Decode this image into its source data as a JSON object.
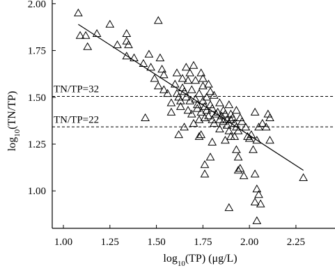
{
  "chart_data": {
    "type": "scatter",
    "xlabel": {
      "base": "log",
      "sub": "10",
      "rest": "(TP) (μg/L)"
    },
    "ylabel": {
      "base": "log",
      "sub": "10",
      "rest": "(TN/TP)"
    },
    "xlim": [
      0.94,
      2.46
    ],
    "ylim": [
      0.8,
      2.02
    ],
    "xticks": [
      1.0,
      1.25,
      1.5,
      1.75,
      2.0,
      2.25
    ],
    "xtick_labels": [
      "1.00",
      "1.25",
      "1.50",
      "1.75",
      "2.00",
      "2.25"
    ],
    "yticks": [
      1.0,
      1.25,
      1.5,
      1.75,
      2.0
    ],
    "ytick_labels": [
      "1.00",
      "1.25",
      "1.50",
      "1.75",
      "2.00"
    ],
    "grid": false,
    "marker": "open-triangle",
    "reference_lines": [
      {
        "label": "TN/TP=32",
        "y": 1.505
      },
      {
        "label": "TN/TP=22",
        "y": 1.342
      }
    ],
    "fit_line": {
      "x": [
        1.08,
        2.29
      ],
      "y": [
        1.89,
        1.11
      ]
    },
    "points": [
      [
        1.08,
        1.95
      ],
      [
        1.09,
        1.83
      ],
      [
        1.12,
        1.83
      ],
      [
        1.13,
        1.77
      ],
      [
        1.18,
        1.84
      ],
      [
        1.25,
        1.89
      ],
      [
        1.29,
        1.78
      ],
      [
        1.34,
        1.84
      ],
      [
        1.34,
        1.8
      ],
      [
        1.35,
        1.78
      ],
      [
        1.34,
        1.72
      ],
      [
        1.38,
        1.71
      ],
      [
        1.43,
        1.68
      ],
      [
        1.46,
        1.73
      ],
      [
        1.47,
        1.66
      ],
      [
        1.51,
        1.91
      ],
      [
        1.52,
        1.71
      ],
      [
        1.53,
        1.65
      ],
      [
        1.49,
        1.6
      ],
      [
        1.51,
        1.56
      ],
      [
        1.54,
        1.54
      ],
      [
        1.56,
        1.52
      ],
      [
        1.44,
        1.39
      ],
      [
        1.54,
        1.62
      ],
      [
        1.58,
        1.47
      ],
      [
        1.58,
        1.42
      ],
      [
        1.6,
        1.57
      ],
      [
        1.61,
        1.52
      ],
      [
        1.61,
        1.63
      ],
      [
        1.62,
        1.5
      ],
      [
        1.63,
        1.48
      ],
      [
        1.63,
        1.45
      ],
      [
        1.64,
        1.55
      ],
      [
        1.64,
        1.6
      ],
      [
        1.65,
        1.53
      ],
      [
        1.66,
        1.66
      ],
      [
        1.66,
        1.5
      ],
      [
        1.67,
        1.43
      ],
      [
        1.67,
        1.59
      ],
      [
        1.68,
        1.48
      ],
      [
        1.68,
        1.63
      ],
      [
        1.69,
        1.41
      ],
      [
        1.69,
        1.54
      ],
      [
        1.7,
        1.67
      ],
      [
        1.7,
        1.36
      ],
      [
        1.71,
        1.59
      ],
      [
        1.71,
        1.49
      ],
      [
        1.72,
        1.44
      ],
      [
        1.72,
        1.46
      ],
      [
        1.73,
        1.38
      ],
      [
        1.73,
        1.52
      ],
      [
        1.74,
        1.42
      ],
      [
        1.74,
        1.63
      ],
      [
        1.75,
        1.48
      ],
      [
        1.75,
        1.56
      ],
      [
        1.75,
        1.6
      ],
      [
        1.76,
        1.39
      ],
      [
        1.76,
        1.45
      ],
      [
        1.77,
        1.5
      ],
      [
        1.77,
        1.43
      ],
      [
        1.78,
        1.4
      ],
      [
        1.78,
        1.57
      ],
      [
        1.79,
        1.53
      ],
      [
        1.79,
        1.46
      ],
      [
        1.8,
        1.38
      ],
      [
        1.8,
        1.44
      ],
      [
        1.81,
        1.51
      ],
      [
        1.81,
        1.36
      ],
      [
        1.82,
        1.41
      ],
      [
        1.83,
        1.42
      ],
      [
        1.84,
        1.38
      ],
      [
        1.84,
        1.47
      ],
      [
        1.85,
        1.4
      ],
      [
        1.86,
        1.43
      ],
      [
        1.87,
        1.41
      ],
      [
        1.88,
        1.38
      ],
      [
        1.88,
        1.35
      ],
      [
        1.89,
        1.46
      ],
      [
        1.9,
        1.38
      ],
      [
        1.9,
        1.41
      ],
      [
        1.91,
        1.39
      ],
      [
        1.92,
        1.36
      ],
      [
        1.93,
        1.43
      ],
      [
        1.93,
        1.34
      ],
      [
        1.94,
        1.32
      ],
      [
        1.95,
        1.39
      ],
      [
        1.96,
        1.37
      ],
      [
        1.98,
        1.34
      ],
      [
        1.99,
        1.29
      ],
      [
        2.0,
        1.28
      ],
      [
        2.01,
        1.3
      ],
      [
        2.03,
        1.42
      ],
      [
        2.04,
        1.27
      ],
      [
        2.05,
        1.34
      ],
      [
        2.07,
        1.36
      ],
      [
        2.09,
        1.34
      ],
      [
        2.1,
        1.41
      ],
      [
        2.11,
        1.39
      ],
      [
        2.11,
        1.27
      ],
      [
        1.73,
        1.29
      ],
      [
        1.74,
        1.3
      ],
      [
        1.76,
        1.14
      ],
      [
        1.76,
        1.09
      ],
      [
        1.79,
        1.18
      ],
      [
        1.8,
        1.26
      ],
      [
        1.84,
        1.33
      ],
      [
        1.86,
        1.37
      ],
      [
        1.87,
        1.27
      ],
      [
        1.89,
        1.32
      ],
      [
        1.9,
        1.29
      ],
      [
        1.92,
        1.29
      ],
      [
        1.93,
        1.22
      ],
      [
        1.94,
        1.18
      ],
      [
        1.94,
        1.11
      ],
      [
        1.95,
        1.12
      ],
      [
        1.97,
        1.08
      ],
      [
        2.02,
        1.22
      ],
      [
        2.03,
        1.09
      ],
      [
        2.04,
        1.01
      ],
      [
        2.05,
        0.98
      ],
      [
        2.06,
        0.93
      ],
      [
        2.03,
        0.94
      ],
      [
        2.04,
        0.84
      ],
      [
        1.89,
        0.91
      ],
      [
        1.62,
        1.3
      ],
      [
        1.65,
        1.34
      ],
      [
        2.29,
        1.07
      ]
    ]
  }
}
